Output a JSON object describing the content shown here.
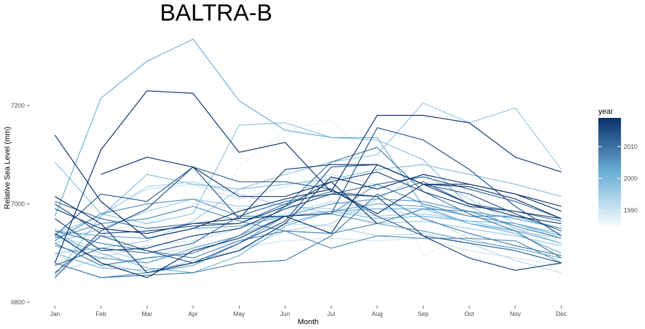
{
  "chart_data": {
    "type": "line",
    "title": "BALTRA-B",
    "xlabel": "Month",
    "ylabel": "Relative Sea Level (mm)",
    "categories": [
      "Jan",
      "Feb",
      "Mar",
      "Apr",
      "May",
      "Jun",
      "Jul",
      "Aug",
      "Sep",
      "Oct",
      "Nov",
      "Dec"
    ],
    "yticks": [
      6800,
      7000,
      7200
    ],
    "ylim": [
      6790,
      7365
    ],
    "grid": false,
    "legend": {
      "title": "year",
      "position": "right",
      "range": [
        1985,
        2019
      ],
      "ticks": [
        1990,
        2000,
        2010
      ],
      "color_low": "#f7fbff",
      "color_high": "#08306b"
    },
    "series": [
      {
        "year": 1985,
        "values": [
          6835,
          6850,
          6815,
          6830,
          6850,
          6905,
          6920,
          6860,
          6855,
          6835,
          6870,
          6840
        ]
      },
      {
        "year": 1987,
        "values": [
          6925,
          6900,
          6890,
          6920,
          7075,
          7150,
          7170,
          7080,
          6895,
          6940,
          6935,
          6910
        ]
      },
      {
        "year": 1988,
        "values": [
          6935,
          6945,
          6960,
          7000,
          6990,
          6990,
          6985,
          6990,
          6985,
          6960,
          6950,
          6935
        ]
      },
      {
        "year": 1990,
        "values": [
          6895,
          6870,
          6890,
          6915,
          6910,
          6925,
          6930,
          6925,
          6930,
          6905,
          6890,
          6875
        ]
      },
      {
        "year": 1991,
        "values": [
          6930,
          6980,
          7030,
          7040,
          7010,
          7035,
          7060,
          7040,
          7000,
          6985,
          6970,
          6950
        ]
      },
      {
        "year": 1992,
        "values": [
          6860,
          6890,
          6915,
          6925,
          6950,
          6980,
          7005,
          6990,
          6975,
          6930,
          6905,
          6880
        ]
      },
      {
        "year": 1993,
        "values": [
          6935,
          6910,
          6880,
          6905,
          6925,
          6960,
          6955,
          6935,
          6940,
          6920,
          6885,
          6860
        ]
      },
      {
        "year": 1994,
        "values": [
          6950,
          6880,
          6860,
          6885,
          6905,
          6945,
          6960,
          7010,
          7060,
          7010,
          6960,
          6930
        ]
      },
      {
        "year": 1995,
        "values": [
          6940,
          6975,
          7035,
          7045,
          7020,
          6995,
          6990,
          6975,
          6980,
          6965,
          6945,
          6930
        ]
      },
      {
        "year": 1996,
        "values": [
          6920,
          6950,
          6985,
          7010,
          6995,
          7000,
          6980,
          6960,
          6965,
          6950,
          6935,
          6915
        ]
      },
      {
        "year": 1997,
        "values": [
          6900,
          6910,
          6925,
          6965,
          7030,
          7060,
          7085,
          7100,
          7205,
          7165,
          7195,
          7070
        ]
      },
      {
        "year": 1998,
        "values": [
          7085,
          6980,
          6960,
          6980,
          7160,
          7165,
          7135,
          7130,
          7090,
          6995,
          6950,
          6920
        ]
      },
      {
        "year": 1999,
        "values": [
          6855,
          6975,
          7060,
          7040,
          7030,
          7040,
          7050,
          7070,
          7080,
          7060,
          7040,
          7015
        ]
      },
      {
        "year": 2000,
        "values": [
          6900,
          6870,
          6865,
          6880,
          6905,
          6960,
          6985,
          6970,
          6975,
          6965,
          6960,
          6940
        ]
      },
      {
        "year": 2001,
        "values": [
          6935,
          6900,
          6870,
          6860,
          6895,
          6955,
          6985,
          6990,
          6990,
          6960,
          6945,
          6920
        ]
      },
      {
        "year": 2002,
        "values": [
          6975,
          7215,
          7290,
          7335,
          7210,
          7150,
          7135,
          7135,
          6995,
          6960,
          6940,
          6900
        ]
      },
      {
        "year": 2003,
        "values": [
          6945,
          6935,
          6930,
          6950,
          6955,
          6975,
          6985,
          7000,
          6995,
          6975,
          6960,
          6935
        ]
      },
      {
        "year": 2004,
        "values": [
          6915,
          6890,
          6880,
          6910,
          6935,
          6975,
          6980,
          6960,
          6945,
          6925,
          6910,
          6890
        ]
      },
      {
        "year": 2005,
        "values": [
          6880,
          6850,
          6860,
          6875,
          6920,
          6975,
          7000,
          7010,
          7005,
          6985,
          6970,
          6950
        ]
      },
      {
        "year": 2006,
        "values": [
          6925,
          6980,
          7000,
          7010,
          6975,
          6975,
          6980,
          7040,
          7000,
          6975,
          6975,
          6950
        ]
      },
      {
        "year": 2007,
        "values": [
          6930,
          6960,
          6970,
          6995,
          6965,
          6945,
          6910,
          6935,
          6930,
          6930,
          6925,
          6880
        ]
      },
      {
        "year": 2008,
        "values": [
          6945,
          6920,
          6905,
          6890,
          6925,
          6945,
          6940,
          6960,
          6990,
          6985,
          6955,
          6930
        ]
      },
      {
        "year": 2009,
        "values": [
          6880,
          6850,
          6855,
          6860,
          6880,
          6885,
          6935,
          7020,
          6970,
          6940,
          6915,
          6895
        ]
      },
      {
        "year": 2010,
        "values": [
          6920,
          6875,
          6890,
          6900,
          6935,
          6995,
          7085,
          7115,
          7025,
          6980,
          6945,
          6890
        ]
      },
      {
        "year": 2011,
        "values": [
          7005,
          6970,
          6950,
          6960,
          6960,
          7000,
          7025,
          7015,
          7045,
          7000,
          6985,
          6965
        ]
      },
      {
        "year": 2012,
        "values": [
          6875,
          6910,
          6900,
          6920,
          6975,
          7005,
          7020,
          7040,
          7055,
          7030,
          7005,
          6970
        ]
      },
      {
        "year": 2013,
        "values": [
          6935,
          7020,
          7005,
          7075,
          7045,
          7045,
          7030,
          6975,
          6935,
          6920,
          6905,
          6880
        ]
      },
      {
        "year": 2014,
        "values": [
          6860,
          6935,
          6905,
          6880,
          6920,
          6965,
          7075,
          7080,
          7040,
          7020,
          6980,
          6945
        ]
      },
      {
        "year": 2015,
        "values": [
          6850,
          6945,
          6990,
          7075,
          6970,
          6975,
          6980,
          7155,
          7130,
          7070,
          6995,
          6935
        ]
      },
      {
        "year": 2016,
        "values": [
          7000,
          6940,
          6945,
          6955,
          6960,
          6995,
          7045,
          7065,
          7025,
          6995,
          6985,
          6970
        ]
      },
      {
        "year": 2017,
        "values": [
          6970,
          6905,
          6910,
          6935,
          6950,
          6990,
          7020,
          7015,
          6935,
          6890,
          6865,
          6880
        ]
      },
      {
        "year": 2018,
        "values": [
          6990,
          6950,
          6940,
          6960,
          6970,
          7070,
          7080,
          7080,
          7040,
          7035,
          7010,
          6970
        ]
      },
      {
        "year": 2019,
        "values": [
          6880,
          7110,
          7230,
          7225,
          7105,
          7125,
          7025,
          7180,
          7180,
          7165,
          7095,
          7065
        ]
      },
      {
        "year": 2020,
        "values": [
          7140,
          7005,
          6930,
          6950,
          6985,
          7010,
          7030,
          6980,
          7040,
          7040,
          7020,
          6995
        ]
      },
      {
        "year": 2021,
        "values": [
          7015,
          6960,
          6860,
          6880,
          6905,
          6960,
          7055,
          7030,
          7060,
          7040,
          7020,
          6985
        ]
      },
      {
        "year": 2022,
        "values": [
          null,
          7060,
          7095,
          7075,
          7015,
          7015,
          7045,
          6960,
          null,
          null,
          null,
          null
        ]
      },
      {
        "year": 2023,
        "values": [
          6940,
          6880,
          6850,
          6905,
          6930,
          6975,
          6940,
          7080,
          7040,
          7000,
          6975,
          6960
        ]
      }
    ]
  }
}
